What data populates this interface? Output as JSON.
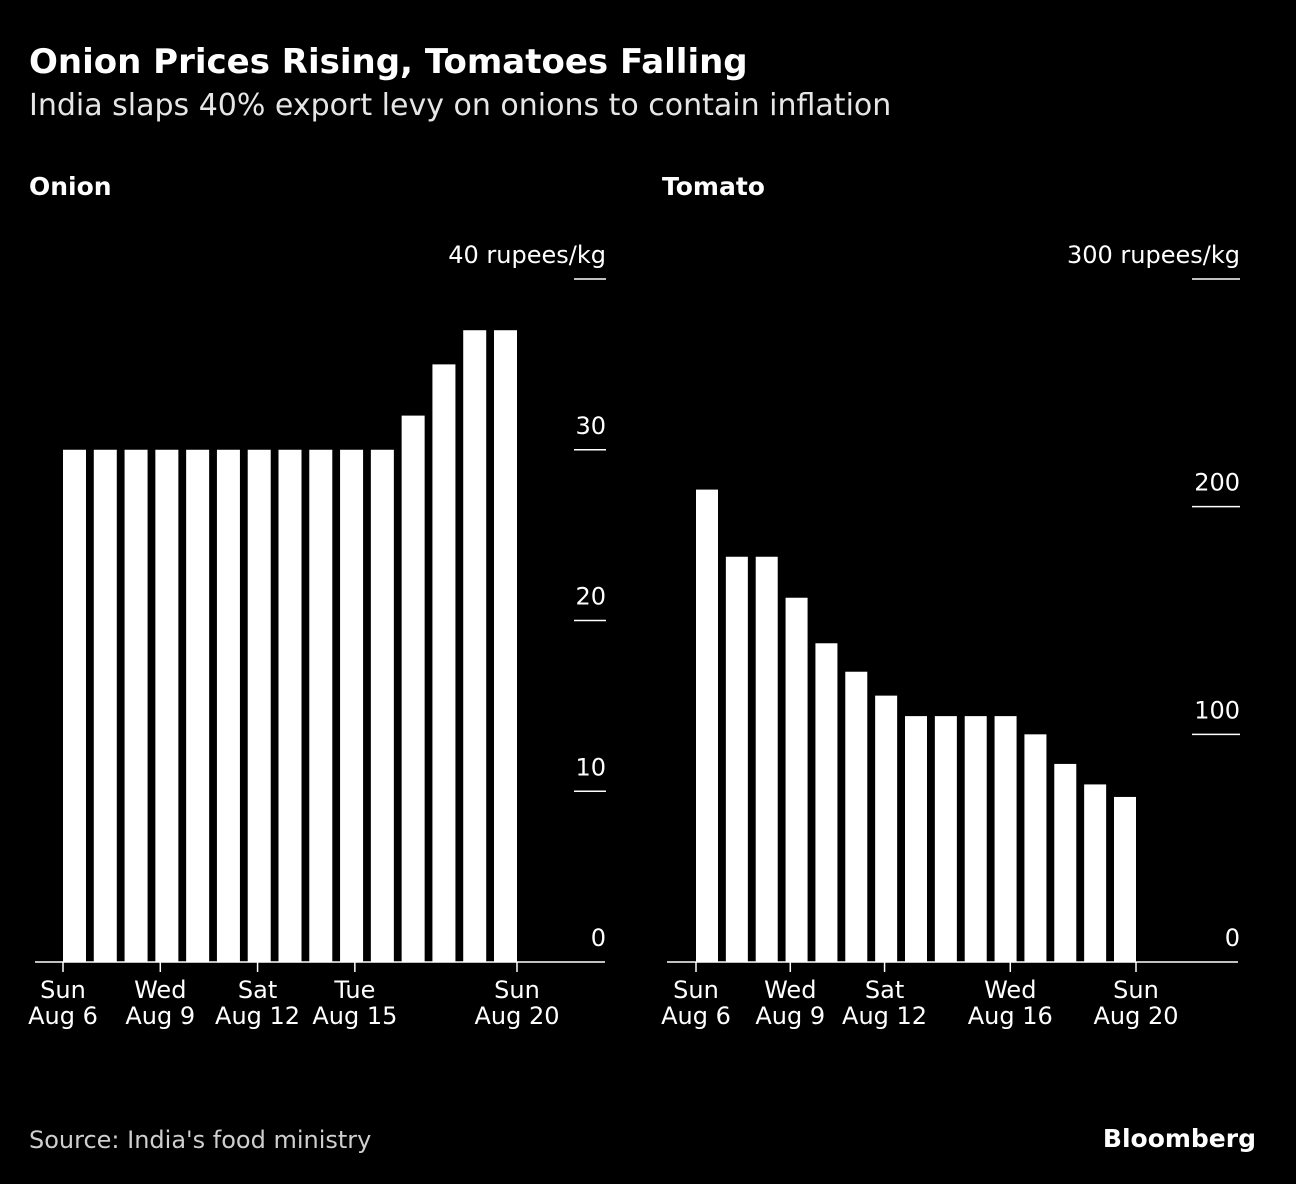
{
  "title": "Onion Prices Rising, Tomatoes Falling",
  "subtitle": "India slaps 40% export levy on onions to contain inflation",
  "source": "Source: India's food ministry",
  "logo": "Bloomberg",
  "colors": {
    "background": "#000000",
    "bars": "#ffffff"
  },
  "chart_data": [
    {
      "type": "bar",
      "title": "Onion",
      "unit_label": "40 rupees/kg",
      "ylim": [
        0,
        40
      ],
      "yticks": [
        0,
        10,
        20,
        30,
        40
      ],
      "ytick_labels": [
        "0",
        "10",
        "20",
        "30",
        "40 rupees/kg"
      ],
      "categories": [
        "Aug 6",
        "Aug 7",
        "Aug 8",
        "Aug 9",
        "Aug 10",
        "Aug 11",
        "Aug 12",
        "Aug 13",
        "Aug 14",
        "Aug 15",
        "Aug 16",
        "Aug 17",
        "Aug 18",
        "Aug 19",
        "Aug 20"
      ],
      "values": [
        30,
        30,
        30,
        30,
        30,
        30,
        30,
        30,
        30,
        30,
        30,
        32,
        35,
        37,
        37
      ],
      "xticks": [
        {
          "index": 0,
          "line1": "Sun",
          "line2": "Aug 6"
        },
        {
          "index": 3,
          "line1": "Wed",
          "line2": "Aug 9"
        },
        {
          "index": 6,
          "line1": "Sat",
          "line2": "Aug 12"
        },
        {
          "index": 9,
          "line1": "Tue",
          "line2": "Aug 15"
        },
        {
          "index": 14,
          "line1": "Sun",
          "line2": "Aug 20"
        }
      ]
    },
    {
      "type": "bar",
      "title": "Tomato",
      "unit_label": "300 rupees/kg",
      "ylim": [
        0,
        300
      ],
      "yticks": [
        0,
        100,
        200,
        300
      ],
      "ytick_labels": [
        "0",
        "100",
        "200",
        "300 rupees/kg"
      ],
      "categories": [
        "Aug 6",
        "Aug 7",
        "Aug 8",
        "Aug 9",
        "Aug 10",
        "Aug 11",
        "Aug 12",
        "Aug 13",
        "Aug 14",
        "Aug 15",
        "Aug 16",
        "Aug 17",
        "Aug 18",
        "Aug 19",
        "Aug 20"
      ],
      "values": [
        207.5,
        178,
        178,
        160,
        140,
        127.5,
        117,
        108,
        108,
        108,
        108,
        100,
        87,
        78,
        72.5
      ],
      "xticks": [
        {
          "index": 0,
          "line1": "Sun",
          "line2": "Aug 6"
        },
        {
          "index": 3,
          "line1": "Wed",
          "line2": "Aug 9"
        },
        {
          "index": 6,
          "line1": "Sat",
          "line2": "Aug 12"
        },
        {
          "index": 10,
          "line1": "Wed",
          "line2": "Aug 16"
        },
        {
          "index": 14,
          "line1": "Sun",
          "line2": "Aug 20"
        }
      ]
    }
  ]
}
